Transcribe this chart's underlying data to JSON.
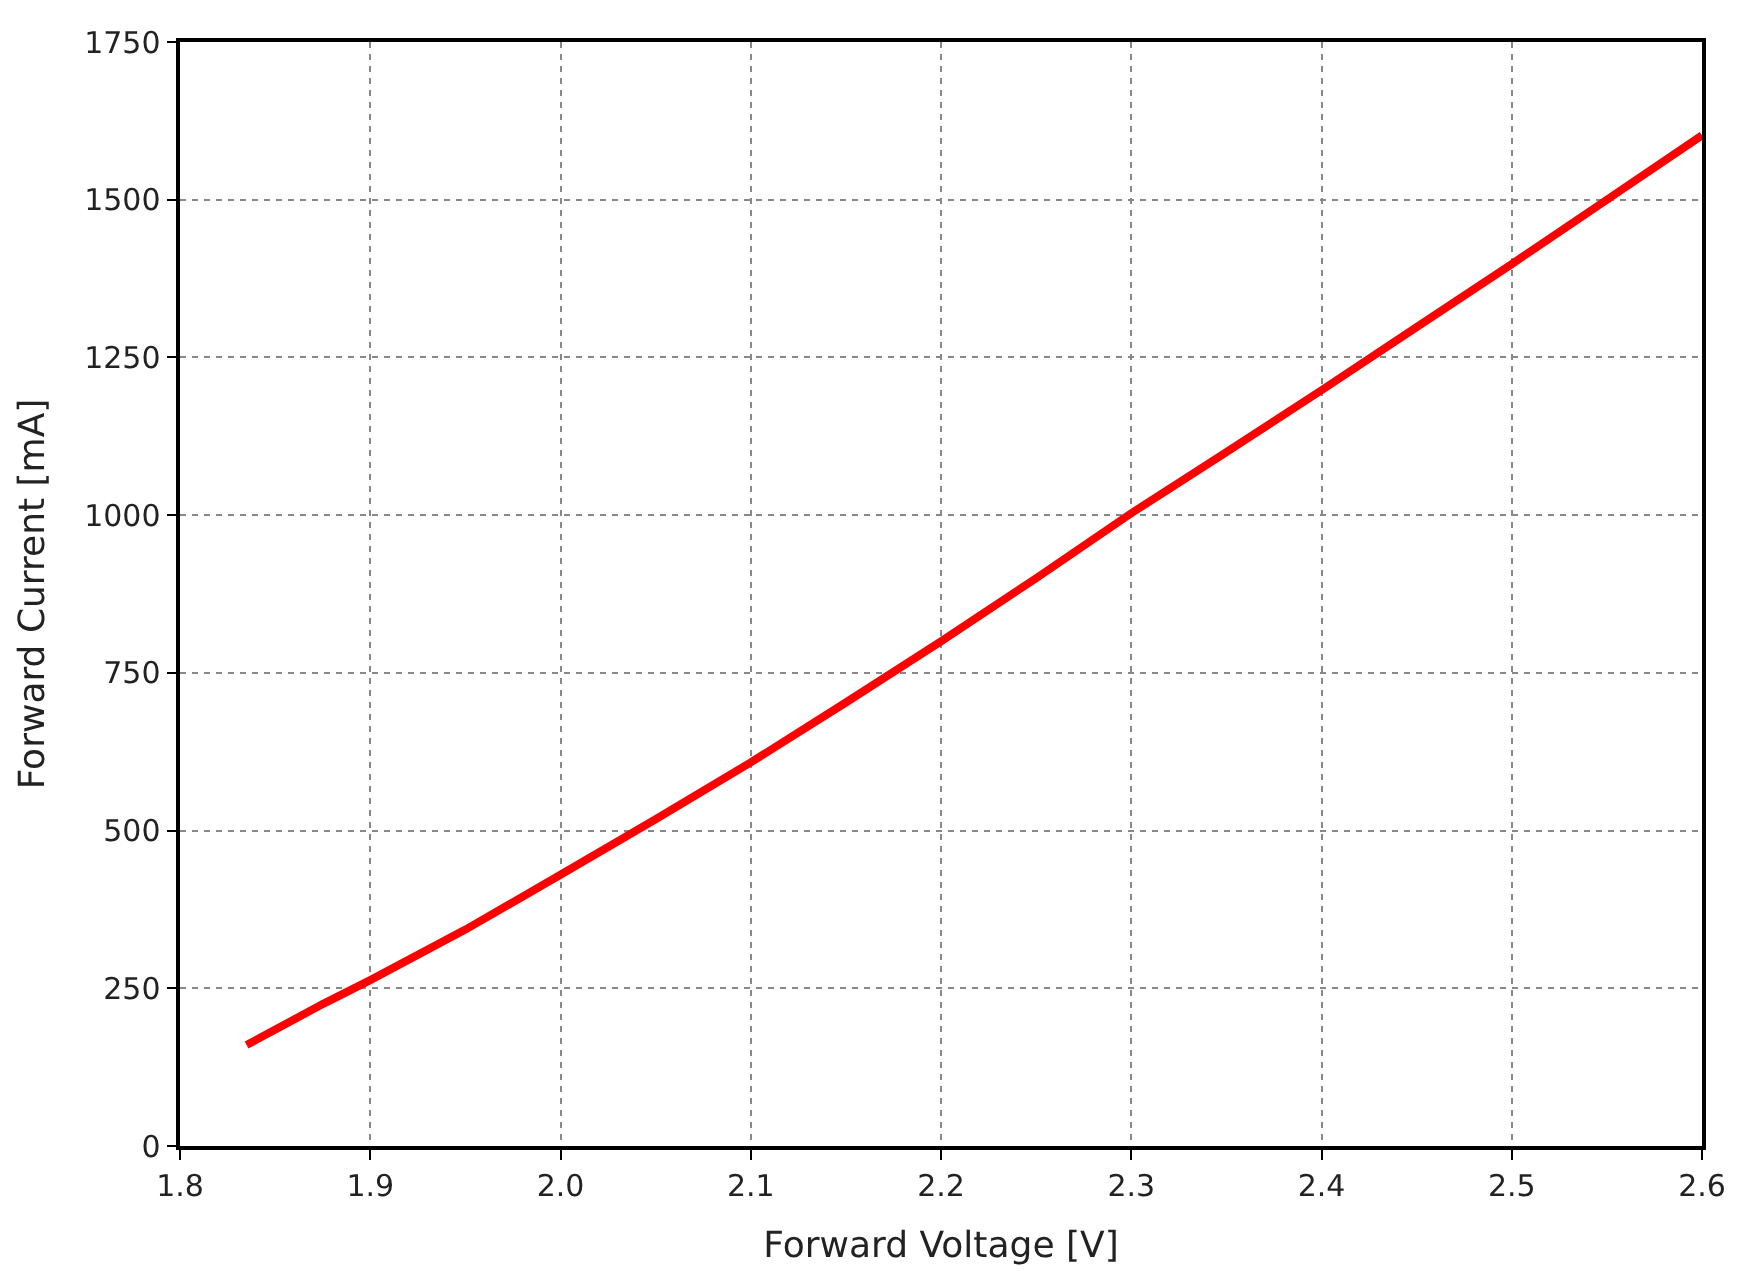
{
  "chart_data": {
    "type": "line",
    "xlabel": "Forward Voltage [V]",
    "ylabel": "Forward Current [mA]",
    "x": [
      1.835,
      1.875,
      1.9,
      1.95,
      2.0,
      2.05,
      2.1,
      2.15,
      2.2,
      2.25,
      2.3,
      2.35,
      2.4,
      2.45,
      2.5,
      2.55,
      2.6
    ],
    "series": [
      {
        "color": "#ff0000",
        "values": [
          160,
          225,
          263,
          343,
          430,
          518,
          608,
          703,
          800,
          900,
          1003,
          1100,
          1198,
          1298,
          1398,
          1500,
          1602
        ]
      }
    ],
    "xlim": [
      1.8,
      2.6
    ],
    "xticks": [
      1.8,
      1.9,
      {
        "value": 2,
        "label": "2.0"
      },
      2.1,
      2.2,
      2.3,
      2.4,
      2.5,
      2.6
    ],
    "ylim": [
      0,
      1750
    ],
    "yticks": [
      0,
      250,
      500,
      750,
      1000,
      1250,
      1500,
      1750
    ],
    "grid": true,
    "line_style": "solid",
    "marker": "none"
  }
}
